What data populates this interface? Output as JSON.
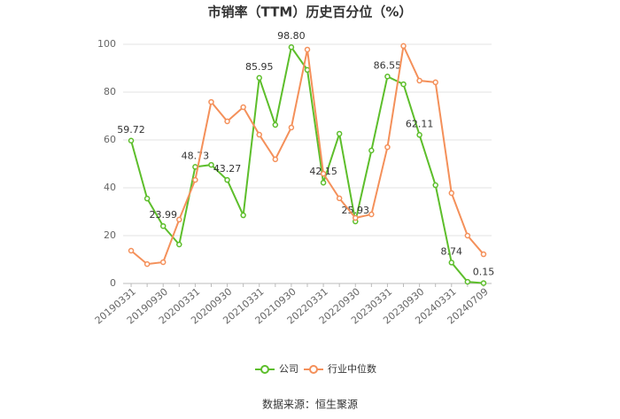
{
  "chart_data": {
    "type": "line",
    "title": "市销率（TTM）历史百分位（%）",
    "categories": [
      "20190331",
      null,
      "20190930",
      null,
      "20200331",
      null,
      "20200930",
      null,
      "20210331",
      null,
      "20210930",
      null,
      "20220331",
      null,
      "20220930",
      null,
      "20230331",
      null,
      "20230930",
      null,
      "20240331",
      null,
      "20240709"
    ],
    "series": [
      {
        "name": "公司",
        "color": "#5dbe2b",
        "values": [
          59.72,
          35.5,
          23.99,
          16.3,
          48.73,
          49.6,
          43.27,
          28.5,
          85.95,
          66.3,
          98.8,
          89.3,
          42.15,
          62.6,
          25.93,
          55.6,
          86.55,
          83.3,
          62.11,
          41.1,
          8.74,
          0.7,
          0.15
        ],
        "value_labels": [
          "59.72",
          null,
          "23.99",
          null,
          "48.73",
          null,
          "43.27",
          null,
          "85.95",
          null,
          "98.80",
          null,
          "42.15",
          null,
          "25.93",
          null,
          "86.55",
          null,
          "62.11",
          null,
          "8.74",
          null,
          "0.15"
        ]
      },
      {
        "name": "行业中位数",
        "color": "#f4905a",
        "values": [
          13.7,
          8.1,
          8.9,
          26.7,
          43.3,
          75.9,
          67.8,
          73.7,
          62.2,
          51.9,
          65.2,
          97.8,
          45.9,
          35.6,
          27.4,
          28.9,
          57.0,
          99.3,
          84.8,
          84.1,
          37.8,
          20.0,
          12.2
        ]
      }
    ],
    "ylim": [
      0,
      100
    ],
    "yticks": [
      0,
      20,
      40,
      60,
      80,
      100
    ],
    "grid": true,
    "source": "数据来源：恒生聚源"
  }
}
